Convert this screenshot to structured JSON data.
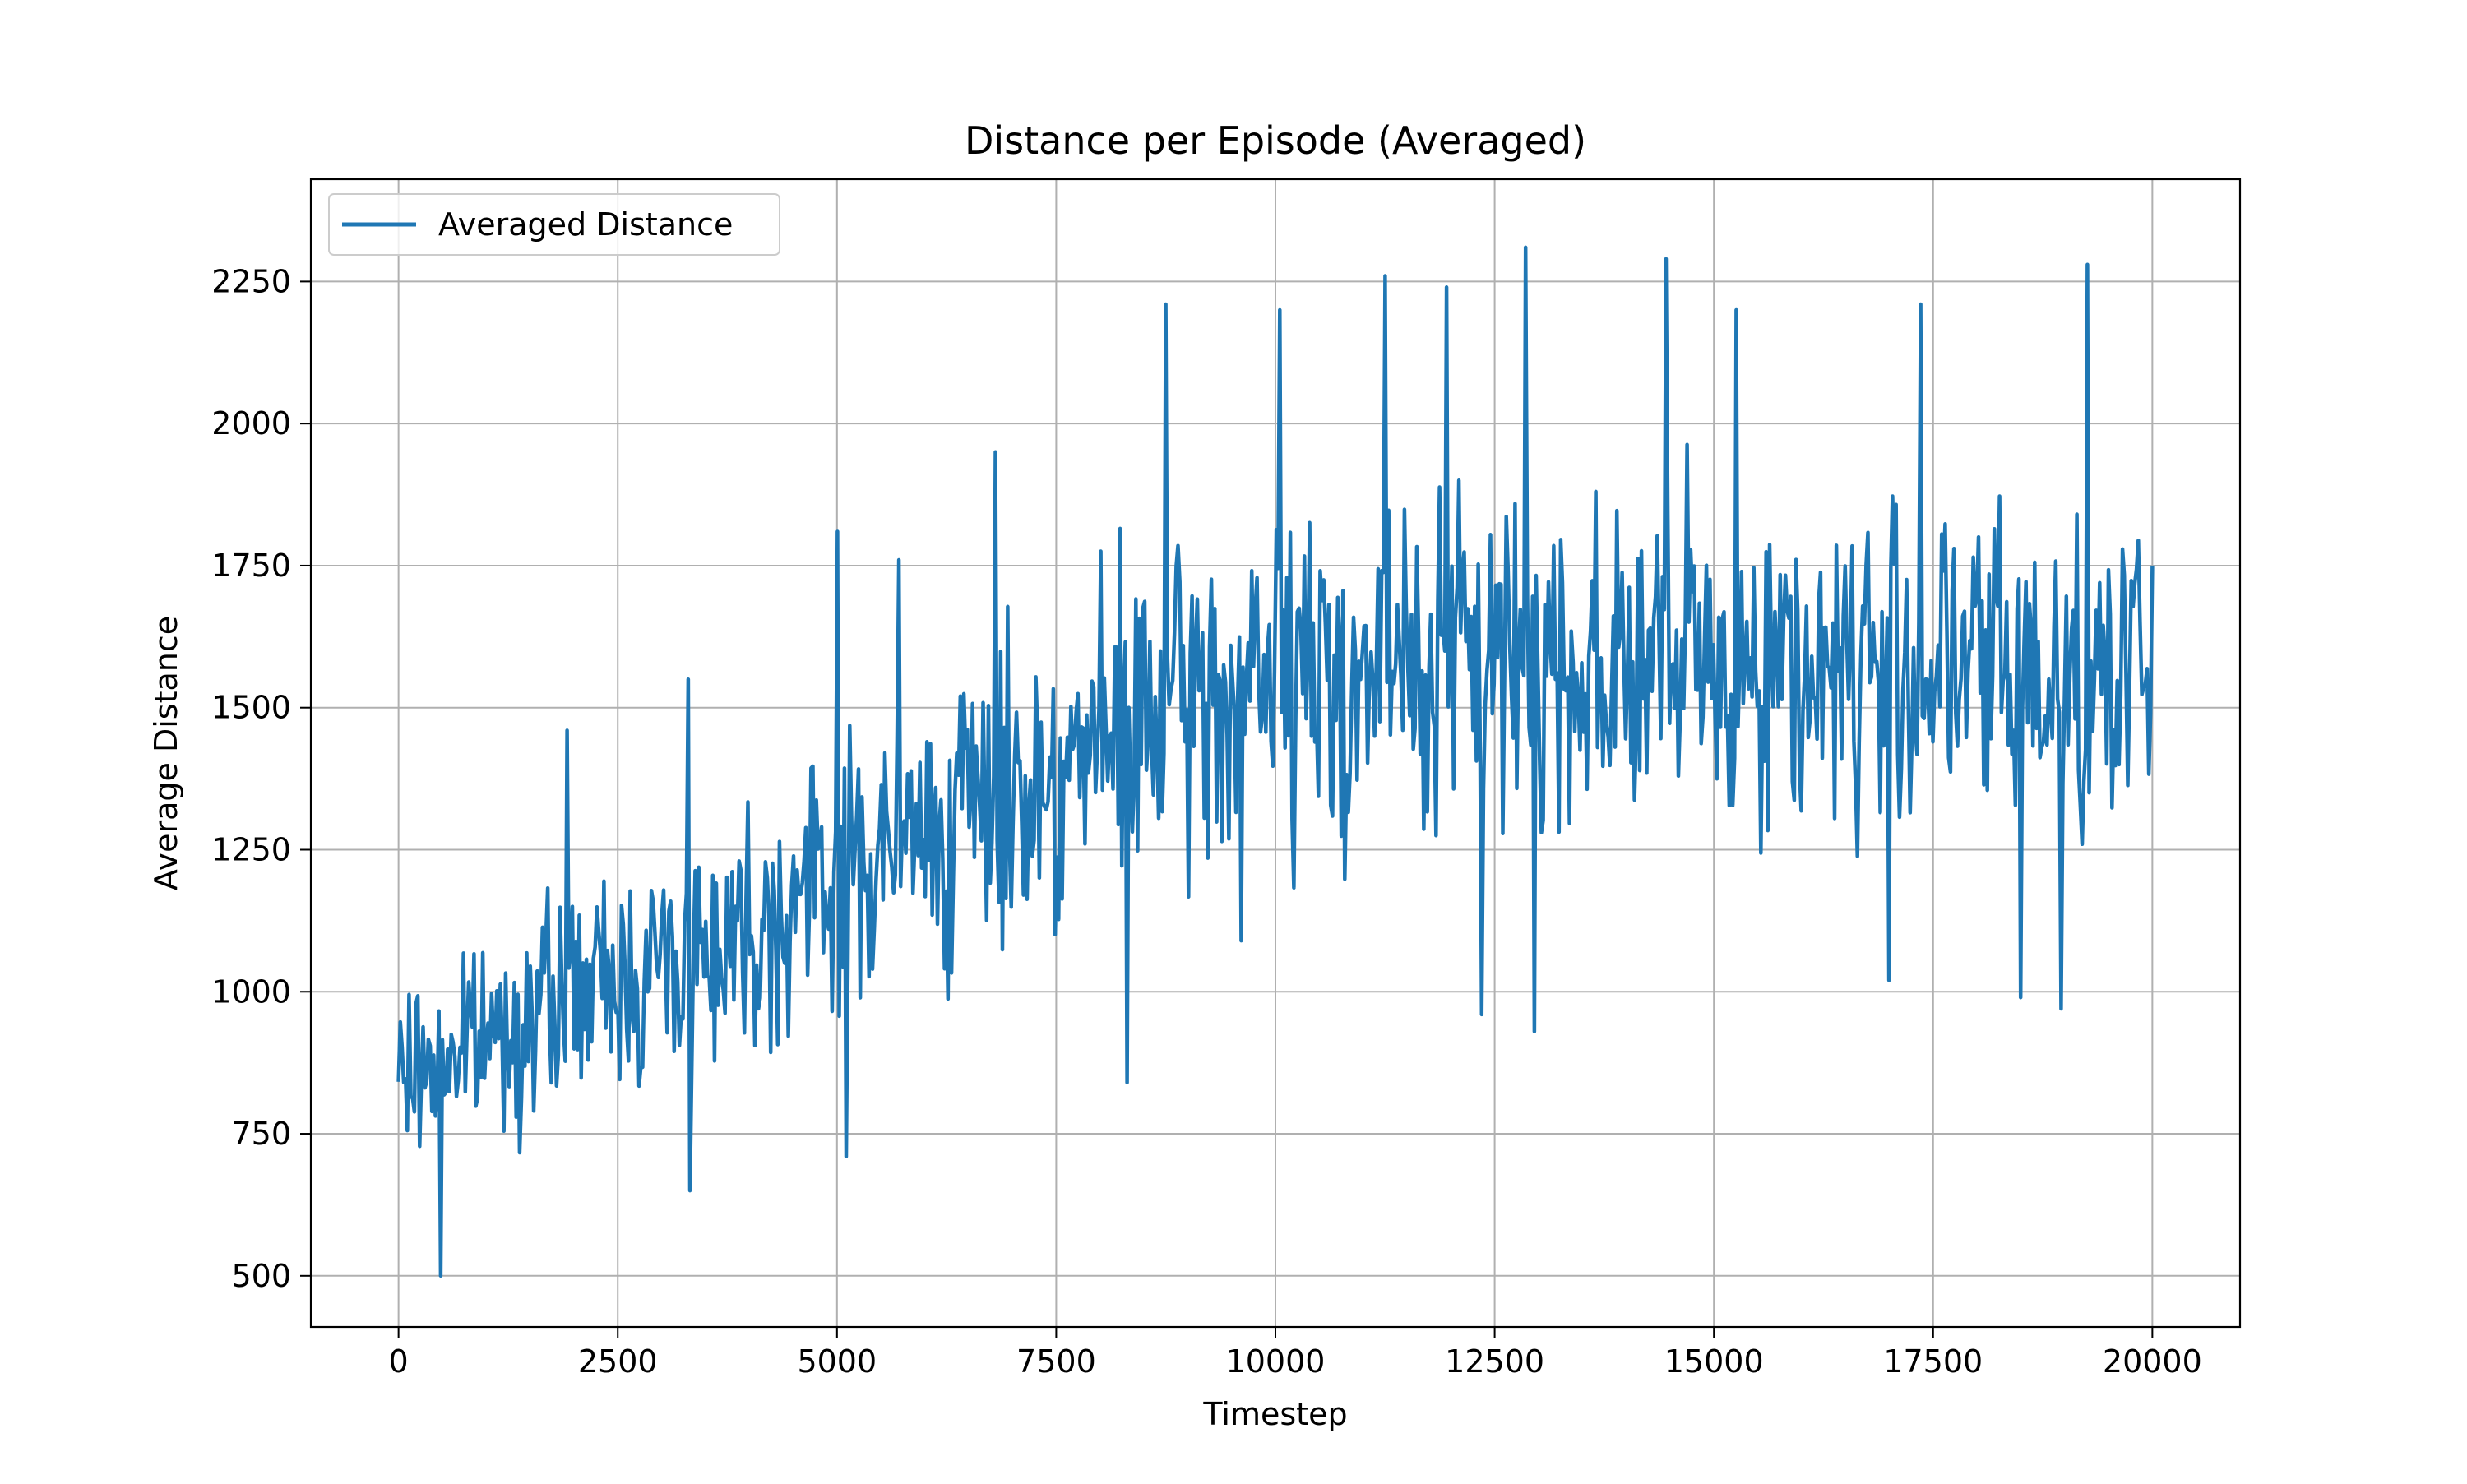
{
  "chart_data": {
    "type": "line",
    "title": "Distance per Episode (Averaged)",
    "xlabel": "Timestep",
    "ylabel": "Average Distance",
    "xlim": [
      -1000,
      21000
    ],
    "ylim": [
      410,
      2430
    ],
    "xticks": [
      0,
      2500,
      5000,
      7500,
      10000,
      12500,
      15000,
      17500,
      20000
    ],
    "yticks": [
      500,
      750,
      1000,
      1250,
      1500,
      1750,
      2000,
      2250
    ],
    "grid": true,
    "legend_position": "top-left",
    "series": [
      {
        "name": "Averaged Distance",
        "color": "#1f77b4",
        "trend_anchors": [
          [
            0,
            850
          ],
          [
            1000,
            920
          ],
          [
            2000,
            990
          ],
          [
            3000,
            1050
          ],
          [
            4000,
            1120
          ],
          [
            5000,
            1200
          ],
          [
            6000,
            1280
          ],
          [
            7000,
            1350
          ],
          [
            8000,
            1430
          ],
          [
            9000,
            1500
          ],
          [
            10000,
            1540
          ],
          [
            11000,
            1560
          ],
          [
            12000,
            1580
          ],
          [
            13000,
            1580
          ],
          [
            14000,
            1580
          ],
          [
            15000,
            1575
          ],
          [
            16000,
            1570
          ],
          [
            17000,
            1570
          ],
          [
            18000,
            1570
          ],
          [
            19000,
            1560
          ],
          [
            20000,
            1550
          ]
        ],
        "noise_amplitude": [
          [
            0,
            120
          ],
          [
            5000,
            200
          ],
          [
            10000,
            250
          ],
          [
            20000,
            250
          ]
        ],
        "peaks": [
          [
            480,
            500
          ],
          [
            1920,
            1460
          ],
          [
            3300,
            1550
          ],
          [
            3330,
            650
          ],
          [
            5000,
            1810
          ],
          [
            5100,
            710
          ],
          [
            5700,
            1760
          ],
          [
            6800,
            1950
          ],
          [
            8300,
            840
          ],
          [
            8750,
            2210
          ],
          [
            9600,
            1090
          ],
          [
            10050,
            2200
          ],
          [
            11250,
            2260
          ],
          [
            11950,
            2240
          ],
          [
            12350,
            960
          ],
          [
            12850,
            2310
          ],
          [
            12950,
            930
          ],
          [
            14450,
            2290
          ],
          [
            15250,
            2200
          ],
          [
            17000,
            1020
          ],
          [
            17350,
            2210
          ],
          [
            18500,
            990
          ],
          [
            18950,
            970
          ],
          [
            19250,
            2280
          ],
          [
            20000,
            1750
          ]
        ],
        "num_points": 1000,
        "seed": 7
      }
    ]
  }
}
